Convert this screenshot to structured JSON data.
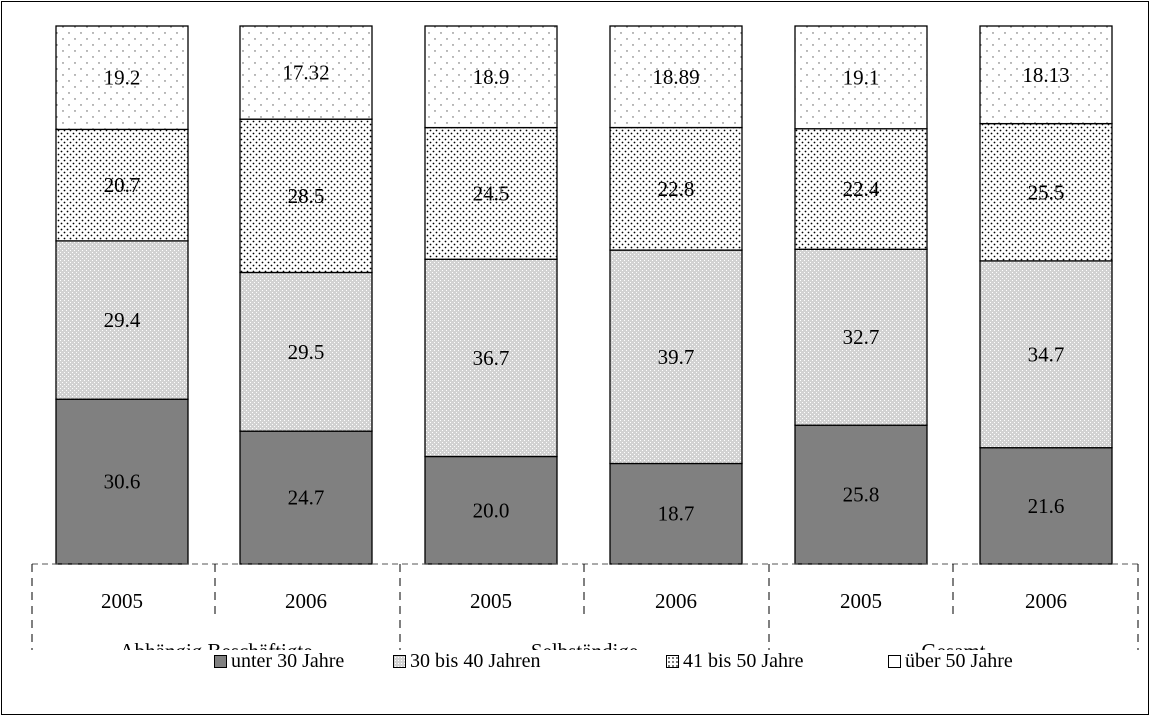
{
  "chart_data": {
    "type": "bar",
    "stacked": true,
    "groups": [
      "Abhängig Beschäftigte",
      "Selbständige",
      "Gesamt"
    ],
    "categories": [
      "2005",
      "2006",
      "2005",
      "2006",
      "2005",
      "2006"
    ],
    "series": [
      {
        "name": "unter 30 Jahre",
        "values": [
          30.6,
          24.7,
          20.0,
          18.7,
          25.8,
          21.6
        ],
        "labels": [
          "30.6",
          "24.7",
          "20.0",
          "18.7",
          "25.8",
          "21.6"
        ],
        "color": "#808080",
        "pattern": "solid"
      },
      {
        "name": "30 bis 40 Jahren",
        "values": [
          29.4,
          29.5,
          36.7,
          39.7,
          32.7,
          34.7
        ],
        "labels": [
          "29.4",
          "29.5",
          "36.7",
          "39.7",
          "32.7",
          "34.7"
        ],
        "color": "#c8c8c8",
        "pattern": "fine-dots"
      },
      {
        "name": "41 bis 50 Jahre",
        "values": [
          20.7,
          28.5,
          24.5,
          22.8,
          22.4,
          25.5
        ],
        "labels": [
          "20.7",
          "28.5",
          "24.5",
          "22.8",
          "22.4",
          "25.5"
        ],
        "color": "#ffffff",
        "pattern": "dense-dots"
      },
      {
        "name": "über 50 Jahre",
        "values": [
          19.2,
          17.32,
          18.9,
          18.89,
          19.1,
          18.13
        ],
        "labels": [
          "19.2",
          "17.32",
          "18.9",
          "18.89",
          "19.1",
          "18.13"
        ],
        "color": "#ffffff",
        "pattern": "sparse-dots"
      }
    ],
    "ylim": [
      0,
      100
    ],
    "title": "",
    "xlabel": "",
    "ylabel": "",
    "grid": false,
    "legend": "bottom"
  }
}
